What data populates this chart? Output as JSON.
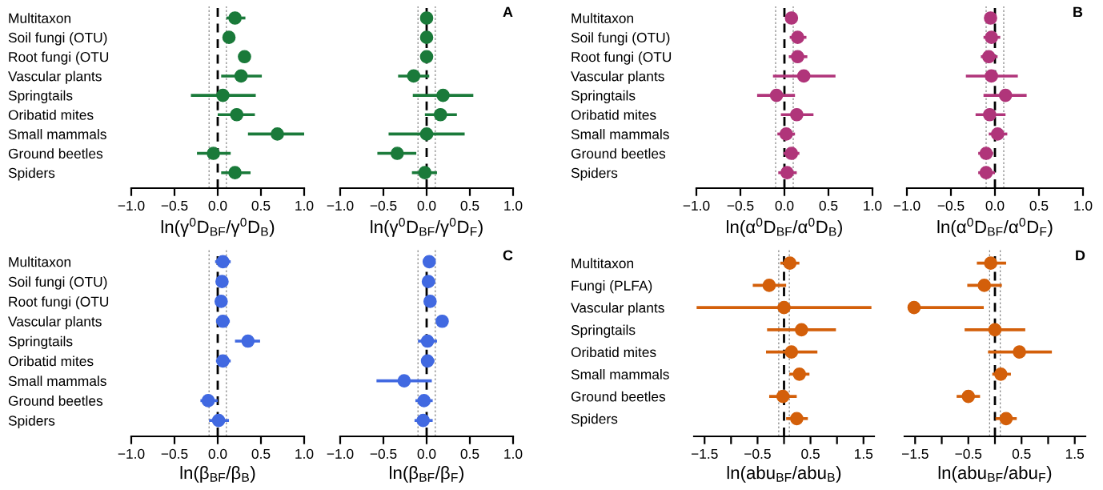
{
  "chart_data": [
    {
      "type": "scatter",
      "orientation": "horizontal",
      "marker": "circle",
      "categories": [
        "Multitaxon",
        "Soil fungi (OTU)",
        "Root fungi (OTU",
        "Vascular plants",
        "Springtails",
        "Oribatid mites",
        "Small mammals",
        "Ground beetles",
        "Spiders"
      ],
      "series": [
        {
          "color": "#1a7a3a",
          "values": [
            0.2,
            0.13,
            0.31,
            0.27,
            0.06,
            0.22,
            0.69,
            -0.05,
            0.2
          ],
          "errors": [
            [
              0.1,
              0.32
            ],
            null,
            null,
            [
              0.04,
              0.51
            ],
            [
              -0.31,
              0.44
            ],
            [
              0.0,
              0.43
            ],
            [
              0.35,
              1.0
            ],
            [
              -0.24,
              0.15
            ],
            [
              0.04,
              0.38
            ]
          ]
        }
      ],
      "xlim": [
        -1,
        1
      ],
      "xticks": [
        {
          "value": -1,
          "label": "−1.0"
        },
        {
          "value": -0.5,
          "label": "−0.5"
        },
        {
          "value": 0,
          "label": "0.0"
        },
        {
          "value": 0.5,
          "label": "0.5"
        },
        {
          "value": 1,
          "label": "1.0"
        }
      ],
      "xlabel": "ln(γ$^{0}$D$_{BF}$/γ$^{0}$D$_{B}$)",
      "ref_lines": [
        {
          "axis": "x",
          "value": 0,
          "color": "#000000",
          "line_style": "dashed"
        },
        {
          "axis": "x",
          "value": -0.1,
          "color": "#888888",
          "line_style": "dotted"
        },
        {
          "axis": "x",
          "value": 0.1,
          "color": "#888888",
          "line_style": "dotted"
        }
      ]
    },
    {
      "type": "scatter",
      "orientation": "horizontal",
      "marker": "circle",
      "tick_labels": "x",
      "categories": [
        null,
        null,
        null,
        null,
        null,
        null,
        null,
        null,
        null
      ],
      "series": [
        {
          "color": "#1a7a3a",
          "values": [
            0.0,
            0.0,
            0.0,
            -0.15,
            0.19,
            0.16,
            0.0,
            -0.34,
            -0.02
          ],
          "errors": [
            null,
            null,
            null,
            [
              -0.33,
              0.03
            ],
            [
              -0.16,
              0.54
            ],
            [
              -0.02,
              0.35
            ],
            [
              -0.44,
              0.44
            ],
            [
              -0.57,
              -0.12
            ],
            [
              -0.17,
              0.12
            ]
          ]
        }
      ],
      "xlim": [
        -1,
        1
      ],
      "xticks": [
        {
          "value": -1,
          "label": "−1.0"
        },
        {
          "value": -0.5,
          "label": "−0.5"
        },
        {
          "value": 0,
          "label": "0.0"
        },
        {
          "value": 0.5,
          "label": "0.5"
        },
        {
          "value": 1,
          "label": "1.0"
        }
      ],
      "xlabel": "ln(γ$^{0}$D$_{BF}$/γ$^{0}$D$_{F}$)",
      "annotations": [
        "A"
      ],
      "ref_lines": [
        {
          "axis": "x",
          "value": 0,
          "color": "#000000",
          "line_style": "dashed"
        },
        {
          "axis": "x",
          "value": -0.1,
          "color": "#888888",
          "line_style": "dotted"
        },
        {
          "axis": "x",
          "value": 0.1,
          "color": "#888888",
          "line_style": "dotted"
        }
      ]
    },
    {
      "type": "scatter",
      "orientation": "horizontal",
      "marker": "circle",
      "categories": [
        "Multitaxon",
        "Soil fungi (OTU)",
        "Root fungi (OTU",
        "Vascular plants",
        "Springtails",
        "Oribatid mites",
        "Small mammals",
        "Ground beetles",
        "Spiders"
      ],
      "series": [
        {
          "color": "#b0357a",
          "values": [
            0.08,
            0.15,
            0.15,
            0.22,
            -0.09,
            0.14,
            0.02,
            0.08,
            0.03
          ],
          "errors": [
            null,
            [
              0.06,
              0.25
            ],
            [
              0.05,
              0.26
            ],
            [
              -0.13,
              0.58
            ],
            [
              -0.31,
              0.12
            ],
            [
              -0.04,
              0.33
            ],
            [
              -0.08,
              0.12
            ],
            [
              -0.01,
              0.17
            ],
            [
              -0.07,
              0.14
            ]
          ]
        }
      ],
      "xlim": [
        -1,
        1
      ],
      "xticks": [
        {
          "value": -1,
          "label": "−1.0"
        },
        {
          "value": -0.5,
          "label": "−0.5"
        },
        {
          "value": 0,
          "label": "0.0"
        },
        {
          "value": 0.5,
          "label": "0.5"
        },
        {
          "value": 1,
          "label": "1.0"
        }
      ],
      "xlabel": "ln(α$^{0}$D$_{BF}$/α$^{0}$D$_{B}$)",
      "ref_lines": [
        {
          "axis": "x",
          "value": 0,
          "color": "#000000",
          "line_style": "dashed"
        },
        {
          "axis": "x",
          "value": -0.1,
          "color": "#888888",
          "line_style": "dotted"
        },
        {
          "axis": "x",
          "value": 0.1,
          "color": "#888888",
          "line_style": "dotted"
        }
      ]
    },
    {
      "type": "scatter",
      "orientation": "horizontal",
      "marker": "circle",
      "tick_labels": "x",
      "categories": [
        null,
        null,
        null,
        null,
        null,
        null,
        null,
        null,
        null
      ],
      "series": [
        {
          "color": "#b0357a",
          "values": [
            -0.05,
            -0.04,
            -0.07,
            -0.04,
            0.12,
            -0.06,
            0.03,
            -0.1,
            -0.1
          ],
          "errors": [
            null,
            [
              -0.13,
              0.06
            ],
            [
              -0.16,
              0.03
            ],
            [
              -0.33,
              0.26
            ],
            [
              -0.13,
              0.36
            ],
            [
              -0.22,
              0.12
            ],
            [
              -0.07,
              0.14
            ],
            [
              -0.19,
              -0.02
            ],
            [
              -0.19,
              0.0
            ]
          ]
        }
      ],
      "xlim": [
        -1,
        1
      ],
      "xticks": [
        {
          "value": -1,
          "label": "−1.0"
        },
        {
          "value": -0.5,
          "label": "−0.5"
        },
        {
          "value": 0,
          "label": "0.0"
        },
        {
          "value": 0.5,
          "label": "0.5"
        },
        {
          "value": 1,
          "label": "1.0"
        }
      ],
      "xlabel": "ln(α$^{0}$D$_{BF}$/α$^{0}$D$_{F}$)",
      "annotations": [
        "B"
      ],
      "ref_lines": [
        {
          "axis": "x",
          "value": 0,
          "color": "#000000",
          "line_style": "dashed"
        },
        {
          "axis": "x",
          "value": -0.1,
          "color": "#888888",
          "line_style": "dotted"
        },
        {
          "axis": "x",
          "value": 0.1,
          "color": "#888888",
          "line_style": "dotted"
        }
      ]
    },
    {
      "type": "scatter",
      "orientation": "horizontal",
      "marker": "circle",
      "categories": [
        "Multitaxon",
        "Soil fungi (OTU)",
        "Root fungi (OTU",
        "Vascular plants",
        "Springtails",
        "Oribatid mites",
        "Small mammals",
        "Ground beetles",
        "Spiders"
      ],
      "series": [
        {
          "color": "#4169e1",
          "values": [
            0.06,
            0.05,
            0.04,
            0.06,
            0.35,
            0.06,
            null,
            -0.11,
            0.01
          ],
          "errors": [
            [
              -0.03,
              0.15
            ],
            [
              -0.01,
              0.11
            ],
            null,
            [
              -0.02,
              0.14
            ],
            [
              0.2,
              0.49
            ],
            [
              -0.02,
              0.15
            ],
            null,
            [
              -0.2,
              0.0
            ],
            [
              -0.1,
              0.13
            ]
          ]
        }
      ],
      "xlim": [
        -1,
        1
      ],
      "xticks": [
        {
          "value": -1,
          "label": "−1.0"
        },
        {
          "value": -0.5,
          "label": "−0.5"
        },
        {
          "value": 0,
          "label": "0.0"
        },
        {
          "value": 0.5,
          "label": "0.5"
        },
        {
          "value": 1,
          "label": "1.0"
        }
      ],
      "xlabel": "ln(β$_{BF}$/β$_{B}$)",
      "ref_lines": [
        {
          "axis": "x",
          "value": 0,
          "color": "#000000",
          "line_style": "dashed"
        },
        {
          "axis": "x",
          "value": -0.1,
          "color": "#888888",
          "line_style": "dotted"
        },
        {
          "axis": "x",
          "value": 0.1,
          "color": "#888888",
          "line_style": "dotted"
        }
      ]
    },
    {
      "type": "scatter",
      "orientation": "horizontal",
      "marker": "circle",
      "tick_labels": "x",
      "categories": [
        null,
        null,
        null,
        null,
        null,
        null,
        null,
        null,
        null
      ],
      "series": [
        {
          "color": "#4169e1",
          "values": [
            0.03,
            0.02,
            0.04,
            0.18,
            0.01,
            0.01,
            -0.26,
            -0.03,
            -0.04
          ],
          "errors": [
            null,
            [
              -0.04,
              0.1
            ],
            null,
            [
              0.11,
              0.25
            ],
            [
              -0.1,
              0.12
            ],
            [
              -0.06,
              0.09
            ],
            [
              -0.58,
              0.06
            ],
            [
              -0.13,
              0.07
            ],
            [
              -0.14,
              0.07
            ]
          ]
        }
      ],
      "xlim": [
        -1,
        1
      ],
      "xticks": [
        {
          "value": -1,
          "label": "−1.0"
        },
        {
          "value": -0.5,
          "label": "−0.5"
        },
        {
          "value": 0,
          "label": "0.0"
        },
        {
          "value": 0.5,
          "label": "0.5"
        },
        {
          "value": 1,
          "label": "1.0"
        }
      ],
      "xlabel": "ln(β$_{BF}$/β$_{F}$)",
      "annotations": [
        "C"
      ],
      "ref_lines": [
        {
          "axis": "x",
          "value": 0,
          "color": "#000000",
          "line_style": "dashed"
        },
        {
          "axis": "x",
          "value": -0.1,
          "color": "#888888",
          "line_style": "dotted"
        },
        {
          "axis": "x",
          "value": 0.1,
          "color": "#888888",
          "line_style": "dotted"
        }
      ]
    },
    {
      "type": "scatter",
      "orientation": "horizontal",
      "marker": "circle",
      "categories": [
        "Multitaxon",
        "Fungi (PLFA)",
        "Vascular plants",
        "Springtails",
        "Oribatid mites",
        "Small mammals",
        "Ground beetles",
        "Spiders"
      ],
      "series": [
        {
          "color": "#d35f0a",
          "values": [
            0.11,
            -0.28,
            0.0,
            0.33,
            0.14,
            0.29,
            -0.02,
            0.24
          ],
          "errors": [
            [
              -0.07,
              0.29
            ],
            [
              -0.59,
              0.04
            ],
            [
              -1.65,
              1.65
            ],
            [
              -0.32,
              0.98
            ],
            [
              -0.34,
              0.63
            ],
            [
              0.1,
              0.48
            ],
            [
              -0.28,
              0.24
            ],
            [
              0.04,
              0.45
            ]
          ]
        }
      ],
      "xlim": [
        -1.7,
        1.7
      ],
      "xticks": [
        {
          "value": -1.5,
          "label": "−1.5"
        },
        {
          "value": -1,
          "label": null
        },
        {
          "value": -0.5,
          "label": "−0.5"
        },
        {
          "value": 0,
          "label": null
        },
        {
          "value": 0.5,
          "label": "0.5"
        },
        {
          "value": 1,
          "label": null
        },
        {
          "value": 1.5,
          "label": "1.5"
        }
      ],
      "xlabel": "ln(abu$_{BF}$/abu$_{B}$)",
      "ref_lines": [
        {
          "axis": "x",
          "value": 0,
          "color": "#000000",
          "line_style": "dashed"
        },
        {
          "axis": "x",
          "value": -0.1,
          "color": "#888888",
          "line_style": "dotted"
        },
        {
          "axis": "x",
          "value": 0.1,
          "color": "#888888",
          "line_style": "dotted"
        }
      ]
    },
    {
      "type": "scatter",
      "orientation": "horizontal",
      "marker": "circle",
      "tick_labels": "x",
      "categories": [
        null,
        null,
        null,
        null,
        null,
        null,
        null,
        null
      ],
      "series": [
        {
          "color": "#d35f0a",
          "values": [
            -0.08,
            -0.2,
            -1.52,
            0.0,
            0.46,
            0.11,
            -0.5,
            0.21
          ],
          "errors": [
            [
              -0.34,
              0.21
            ],
            [
              -0.52,
              0.13
            ],
            [
              -1.64,
              -0.21
            ],
            [
              -0.57,
              0.57
            ],
            [
              -0.13,
              1.07
            ],
            [
              -0.05,
              0.3
            ],
            [
              -0.72,
              -0.28
            ],
            [
              0.01,
              0.41
            ]
          ]
        }
      ],
      "xlim": [
        -1.7,
        1.7
      ],
      "xticks": [
        {
          "value": -1.5,
          "label": "−1.5"
        },
        {
          "value": -1,
          "label": null
        },
        {
          "value": -0.5,
          "label": "−0.5"
        },
        {
          "value": 0,
          "label": null
        },
        {
          "value": 0.5,
          "label": "0.5"
        },
        {
          "value": 1,
          "label": null
        },
        {
          "value": 1.5,
          "label": "1.5"
        }
      ],
      "xlabel": "ln(abu$_{BF}$/abu$_{F}$)",
      "annotations": [
        "D"
      ],
      "ref_lines": [
        {
          "axis": "x",
          "value": 0,
          "color": "#000000",
          "line_style": "dashed"
        },
        {
          "axis": "x",
          "value": -0.1,
          "color": "#888888",
          "line_style": "dotted"
        },
        {
          "axis": "x",
          "value": 0.1,
          "color": "#888888",
          "line_style": "dotted"
        }
      ]
    }
  ]
}
